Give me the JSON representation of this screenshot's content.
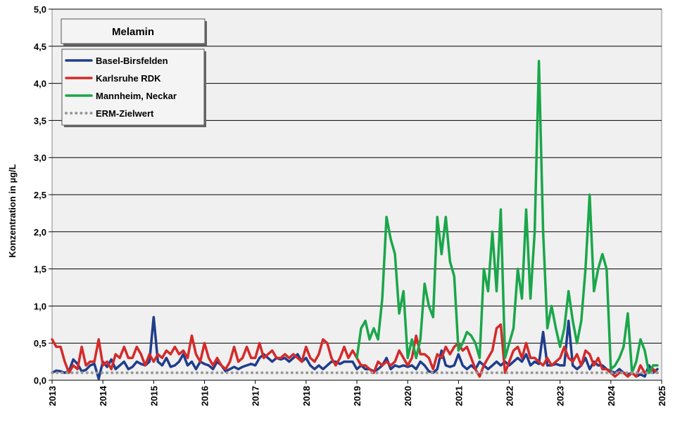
{
  "chart_data": {
    "type": "line",
    "title": "Melamin",
    "y_label": "Konzentration in µg/L",
    "xlim": [
      2013,
      2025
    ],
    "xticks": [
      2013,
      2014,
      2015,
      2016,
      2017,
      2018,
      2019,
      2020,
      2021,
      2022,
      2023,
      2024,
      2025
    ],
    "ylim": [
      0,
      5
    ],
    "yticks": [
      {
        "value": 0,
        "label": "0,0"
      },
      {
        "value": 0.5,
        "label": "0,5"
      },
      {
        "value": 1,
        "label": "1,0"
      },
      {
        "value": 1.5,
        "label": "1,5"
      },
      {
        "value": 2,
        "label": "2,0"
      },
      {
        "value": 2.5,
        "label": "2,5"
      },
      {
        "value": 3,
        "label": "3,0"
      },
      {
        "value": 3.5,
        "label": "3,5"
      },
      {
        "value": 4,
        "label": "4,0"
      },
      {
        "value": 4.5,
        "label": "4,5"
      },
      {
        "value": 5,
        "label": "5,0"
      }
    ],
    "grid": true,
    "legend": "top-left",
    "x": [
      2013,
      2013.083,
      2013.167,
      2013.25,
      2013.333,
      2013.417,
      2013.5,
      2013.583,
      2013.667,
      2013.75,
      2013.833,
      2013.917,
      2014,
      2014.083,
      2014.167,
      2014.25,
      2014.333,
      2014.417,
      2014.5,
      2014.583,
      2014.667,
      2014.75,
      2014.833,
      2014.917,
      2015,
      2015.083,
      2015.167,
      2015.25,
      2015.333,
      2015.417,
      2015.5,
      2015.583,
      2015.667,
      2015.75,
      2015.833,
      2015.917,
      2016,
      2016.083,
      2016.167,
      2016.25,
      2016.333,
      2016.417,
      2016.5,
      2016.583,
      2016.667,
      2016.75,
      2016.833,
      2016.917,
      2017,
      2017.083,
      2017.167,
      2017.25,
      2017.333,
      2017.417,
      2017.5,
      2017.583,
      2017.667,
      2017.75,
      2017.833,
      2017.917,
      2018,
      2018.083,
      2018.167,
      2018.25,
      2018.333,
      2018.417,
      2018.5,
      2018.583,
      2018.667,
      2018.75,
      2018.833,
      2018.917,
      2019,
      2019.083,
      2019.167,
      2019.25,
      2019.333,
      2019.417,
      2019.5,
      2019.583,
      2019.667,
      2019.75,
      2019.833,
      2019.917,
      2020,
      2020.083,
      2020.167,
      2020.25,
      2020.333,
      2020.417,
      2020.5,
      2020.583,
      2020.667,
      2020.75,
      2020.833,
      2020.917,
      2021,
      2021.083,
      2021.167,
      2021.25,
      2021.333,
      2021.417,
      2021.5,
      2021.583,
      2021.667,
      2021.75,
      2021.833,
      2021.917,
      2022,
      2022.083,
      2022.167,
      2022.25,
      2022.333,
      2022.417,
      2022.5,
      2022.583,
      2022.667,
      2022.75,
      2022.833,
      2022.917,
      2023,
      2023.083,
      2023.167,
      2023.25,
      2023.333,
      2023.417,
      2023.5,
      2023.583,
      2023.667,
      2023.75,
      2023.833,
      2023.917,
      2024,
      2024.083,
      2024.167,
      2024.25,
      2024.333,
      2024.417,
      2024.5,
      2024.583,
      2024.667,
      2024.75,
      2024.833,
      2024.917
    ],
    "series": [
      {
        "name": "Basel-Birsfelden",
        "color": "#1f3d8c",
        "values": [
          0.1,
          0.13,
          0.12,
          0.1,
          0.12,
          0.28,
          0.22,
          0.12,
          0.14,
          0.2,
          0.22,
          0.02,
          0.25,
          0.18,
          0.28,
          0.15,
          0.2,
          0.25,
          0.15,
          0.18,
          0.25,
          0.22,
          0.2,
          0.25,
          0.85,
          0.25,
          0.2,
          0.3,
          0.18,
          0.2,
          0.25,
          0.35,
          0.2,
          0.25,
          0.15,
          0.25,
          0.22,
          0.2,
          0.15,
          0.25,
          0.2,
          0.12,
          0.15,
          0.18,
          0.15,
          0.18,
          0.2,
          0.22,
          0.2,
          0.3,
          0.35,
          0.3,
          0.25,
          0.3,
          0.28,
          0.3,
          0.25,
          0.3,
          0.35,
          0.25,
          0.3,
          0.2,
          0.15,
          0.2,
          0.15,
          0.2,
          0.25,
          0.25,
          0.22,
          0.25,
          0.25,
          0.25,
          0.15,
          0.2,
          0.15,
          0.15,
          0.12,
          0.15,
          0.2,
          0.3,
          0.15,
          0.2,
          0.18,
          0.2,
          0.18,
          0.2,
          0.15,
          0.25,
          0.2,
          0.12,
          0.1,
          0.15,
          0.4,
          0.2,
          0.18,
          0.2,
          0.35,
          0.2,
          0.15,
          0.2,
          0.15,
          0.25,
          0.2,
          0.15,
          0.2,
          0.25,
          0.2,
          0.25,
          0.2,
          0.25,
          0.3,
          0.25,
          0.35,
          0.2,
          0.25,
          0.22,
          0.65,
          0.2,
          0.2,
          0.22,
          0.2,
          0.2,
          0.8,
          0.2,
          0.15,
          0.2,
          0.3,
          0.15,
          0.25,
          0.2,
          0.2,
          0.15,
          0.12,
          0.1,
          0.15,
          0.1,
          0.08,
          0.1,
          0.05,
          0.08,
          0.05,
          0.2,
          0.1,
          0.15
        ]
      },
      {
        "name": "Karlsruhe RDK",
        "color": "#d42a2a",
        "values": [
          0.55,
          0.45,
          0.45,
          0.25,
          0.1,
          0.2,
          0.15,
          0.45,
          0.2,
          0.25,
          0.25,
          0.55,
          0.2,
          0.25,
          0.15,
          0.35,
          0.3,
          0.45,
          0.3,
          0.3,
          0.45,
          0.35,
          0.2,
          0.35,
          0.25,
          0.35,
          0.3,
          0.4,
          0.35,
          0.45,
          0.35,
          0.4,
          0.3,
          0.6,
          0.35,
          0.25,
          0.5,
          0.3,
          0.2,
          0.3,
          0.2,
          0.15,
          0.25,
          0.45,
          0.25,
          0.3,
          0.45,
          0.3,
          0.3,
          0.5,
          0.3,
          0.35,
          0.4,
          0.3,
          0.3,
          0.35,
          0.3,
          0.35,
          0.3,
          0.25,
          0.45,
          0.3,
          0.25,
          0.35,
          0.55,
          0.5,
          0.3,
          0.2,
          0.3,
          0.45,
          0.3,
          0.4,
          0.3,
          0.2,
          0.2,
          0.15,
          0.1,
          0.25,
          0.2,
          0.25,
          0.2,
          0.25,
          0.4,
          0.3,
          0.2,
          0.3,
          0.6,
          0.35,
          0.35,
          0.3,
          0.15,
          0.35,
          0.3,
          0.45,
          0.35,
          0.45,
          0.5,
          0.4,
          0.45,
          0.3,
          0.15,
          0.05,
          0.2,
          0.3,
          0.4,
          0.7,
          0.75,
          0.1,
          0.25,
          0.4,
          0.45,
          0.3,
          0.5,
          0.3,
          0.3,
          0.25,
          0.2,
          0.3,
          0.2,
          0.25,
          0.3,
          0.45,
          0.3,
          0.25,
          0.35,
          0.2,
          0.4,
          0.35,
          0.2,
          0.3,
          0.15,
          0.15,
          0.1,
          0.05,
          0.1,
          0.1,
          0.05,
          0.1,
          0.05,
          0.2,
          0.1,
          0.1,
          0.15,
          0.1
        ]
      },
      {
        "name": "Mannheim, Neckar",
        "color": "#1aa64a",
        "values": [
          null,
          null,
          null,
          null,
          null,
          null,
          null,
          null,
          null,
          null,
          null,
          null,
          null,
          null,
          null,
          null,
          null,
          null,
          null,
          null,
          null,
          null,
          null,
          null,
          null,
          null,
          null,
          null,
          null,
          null,
          null,
          null,
          null,
          null,
          null,
          null,
          null,
          null,
          null,
          null,
          null,
          null,
          null,
          null,
          null,
          null,
          null,
          null,
          null,
          null,
          null,
          null,
          null,
          null,
          null,
          null,
          null,
          null,
          null,
          null,
          null,
          null,
          null,
          null,
          null,
          null,
          null,
          null,
          null,
          null,
          null,
          null,
          0.3,
          0.7,
          0.8,
          0.55,
          0.7,
          0.55,
          1.1,
          2.2,
          1.9,
          1.7,
          0.9,
          1.2,
          0.3,
          0.55,
          0.3,
          0.55,
          1.3,
          1.0,
          0.85,
          2.2,
          1.7,
          2.2,
          1.6,
          1.4,
          0.4,
          0.5,
          0.65,
          0.6,
          0.5,
          0.3,
          1.5,
          1.2,
          2.0,
          1.2,
          2.3,
          0.3,
          0.5,
          0.7,
          1.5,
          1.1,
          2.3,
          1.1,
          2.0,
          4.3,
          2.0,
          0.7,
          1.0,
          0.7,
          0.45,
          0.7,
          1.2,
          0.8,
          0.5,
          0.8,
          1.5,
          2.5,
          1.2,
          1.5,
          1.7,
          1.5,
          0.15,
          0.2,
          0.3,
          0.45,
          0.9,
          0.1,
          0.25,
          0.55,
          0.4,
          0.1,
          0.2,
          0.2
        ]
      },
      {
        "name": "ERM-Zielwert",
        "color": "#999999",
        "dotted": true,
        "x": [
          2013,
          2025
        ],
        "values": [
          0.1,
          0.1
        ]
      }
    ]
  }
}
